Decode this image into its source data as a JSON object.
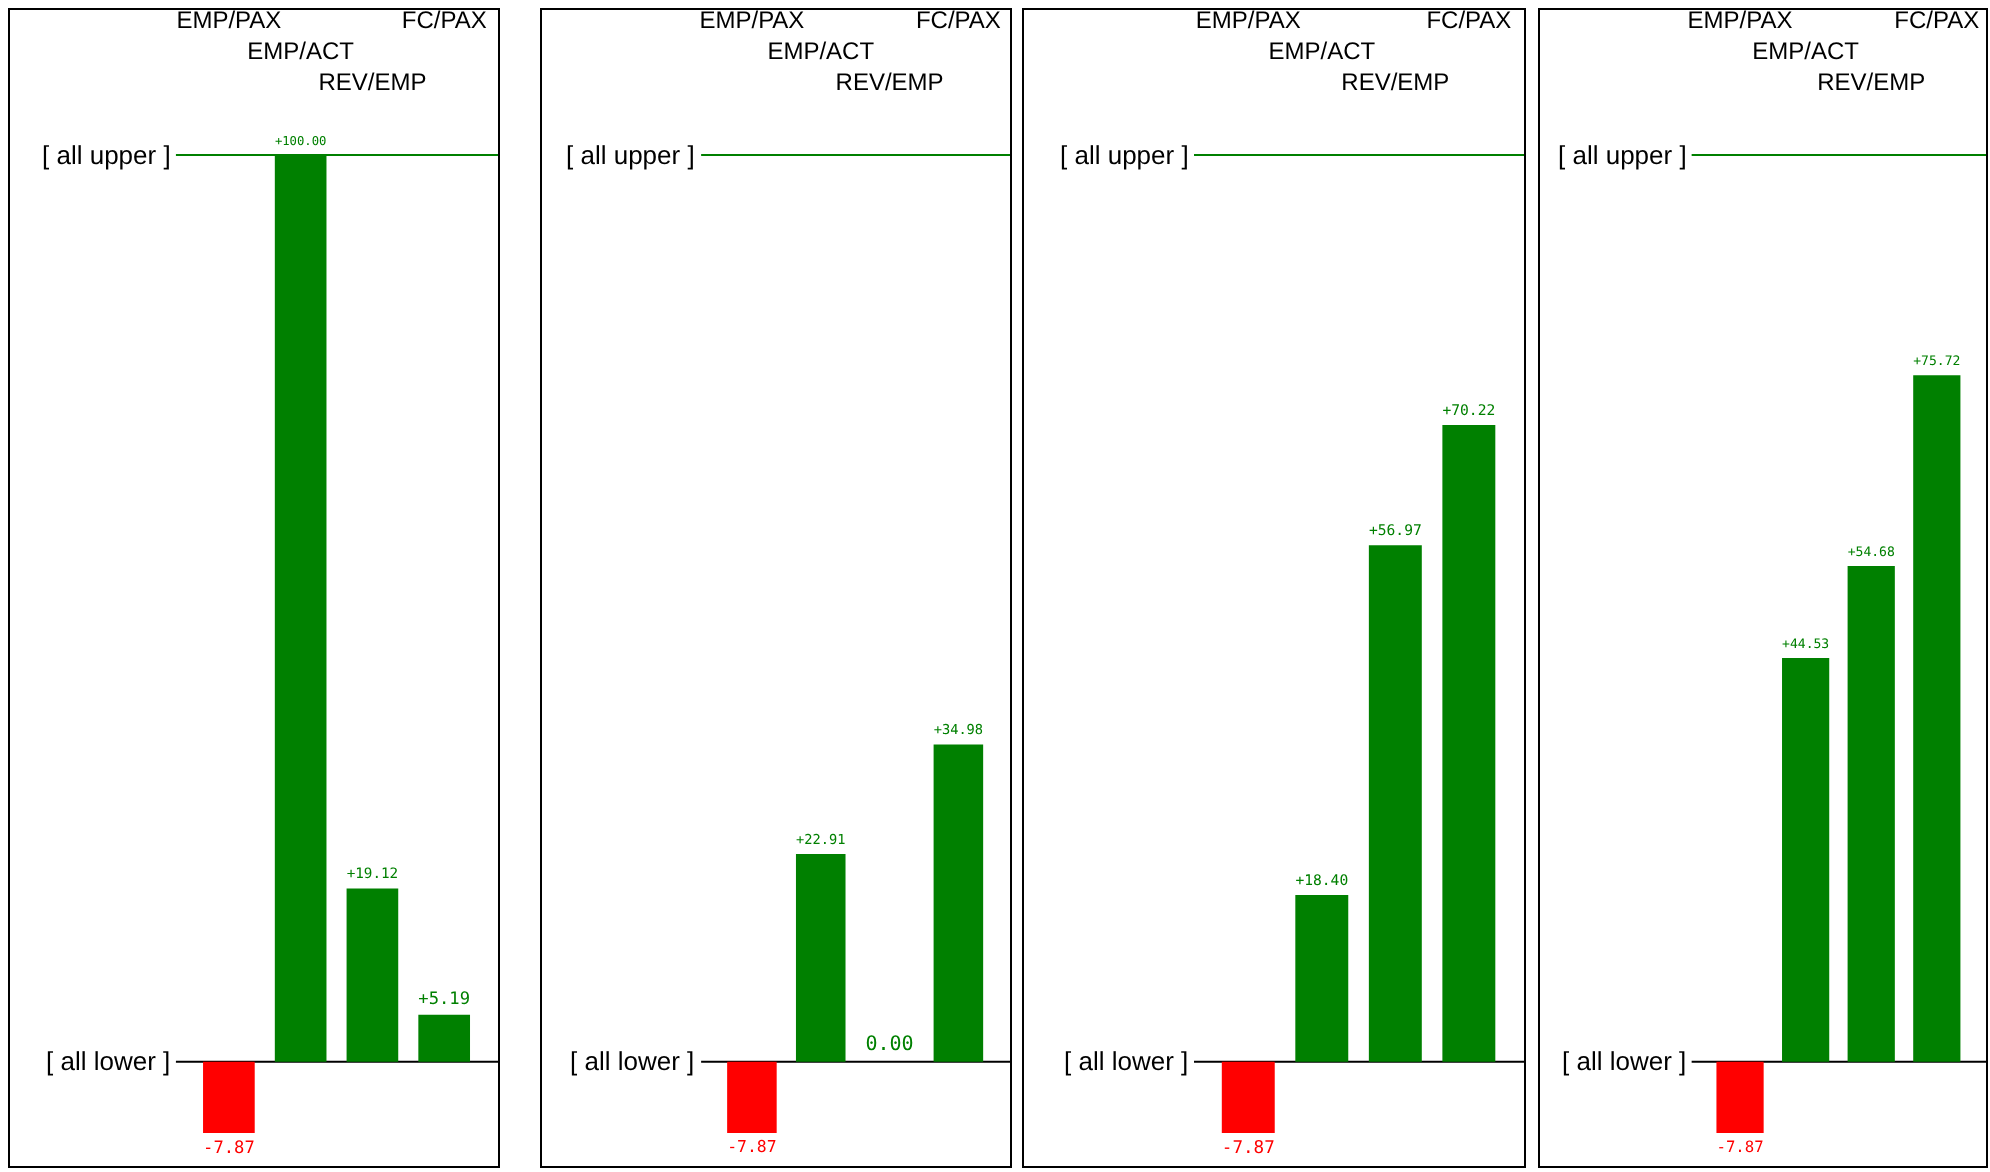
{
  "chart_data": [
    {
      "type": "bar",
      "categories": [
        "EMP/PAX",
        "EMP/ACT",
        "REV/EMP",
        "FC/PAX"
      ],
      "values": [
        -7.87,
        100.0,
        19.12,
        5.19
      ],
      "value_labels": [
        "-7.87",
        "+100.00",
        "+19.12",
        "+5.19"
      ],
      "colors": [
        "#ff0000",
        "#008000",
        "#008000",
        "#008000"
      ],
      "ylim": [
        -11.5,
        116
      ],
      "tick_labels": "x",
      "grid": false,
      "legend": false,
      "ref_lines": [
        {
          "axis": "y",
          "value": 100,
          "label": "[ all upper ]",
          "color": "#008000"
        },
        {
          "axis": "y",
          "value": 0,
          "label": "[ all lower ]",
          "color": "#000000"
        }
      ]
    },
    {
      "type": "bar",
      "categories": [
        "EMP/PAX",
        "EMP/ACT",
        "REV/EMP",
        "FC/PAX"
      ],
      "values": [
        -7.87,
        22.91,
        0.0,
        34.98
      ],
      "value_labels": [
        "-7.87",
        "+22.91",
        "0.00",
        "+34.98"
      ],
      "colors": [
        "#ff0000",
        "#008000",
        "#008000",
        "#008000"
      ],
      "ylim": [
        -11.5,
        116
      ],
      "tick_labels": "x",
      "grid": false,
      "legend": false,
      "ref_lines": [
        {
          "axis": "y",
          "value": 100,
          "label": "[ all upper ]",
          "color": "#008000"
        },
        {
          "axis": "y",
          "value": 0,
          "label": "[ all lower ]",
          "color": "#000000"
        }
      ]
    },
    {
      "type": "bar",
      "categories": [
        "EMP/PAX",
        "EMP/ACT",
        "REV/EMP",
        "FC/PAX"
      ],
      "values": [
        -7.87,
        18.4,
        56.97,
        70.22
      ],
      "value_labels": [
        "-7.87",
        "+18.40",
        "+56.97",
        "+70.22"
      ],
      "colors": [
        "#ff0000",
        "#008000",
        "#008000",
        "#008000"
      ],
      "ylim": [
        -11.5,
        116
      ],
      "tick_labels": "x",
      "grid": false,
      "legend": false,
      "ref_lines": [
        {
          "axis": "y",
          "value": 100,
          "label": "[ all upper ]",
          "color": "#008000"
        },
        {
          "axis": "y",
          "value": 0,
          "label": "[ all lower ]",
          "color": "#000000"
        }
      ]
    },
    {
      "type": "bar",
      "categories": [
        "EMP/PAX",
        "EMP/ACT",
        "REV/EMP",
        "FC/PAX"
      ],
      "values": [
        -7.87,
        44.53,
        54.68,
        75.72
      ],
      "value_labels": [
        "-7.87",
        "+44.53",
        "+54.68",
        "+75.72"
      ],
      "colors": [
        "#ff0000",
        "#008000",
        "#008000",
        "#008000"
      ],
      "ylim": [
        -11.5,
        116
      ],
      "tick_labels": "x",
      "grid": false,
      "legend": false,
      "ref_lines": [
        {
          "axis": "y",
          "value": 100,
          "label": "[ all upper ]",
          "color": "#008000"
        },
        {
          "axis": "y",
          "value": 0,
          "label": "[ all lower ]",
          "color": "#000000"
        }
      ]
    }
  ]
}
